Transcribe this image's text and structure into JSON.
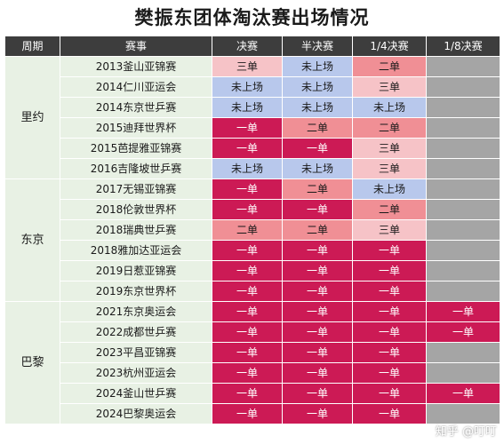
{
  "title": "樊振东团体淘汰赛出场情况",
  "headers": [
    "周期",
    "赛事",
    "决赛",
    "半决赛",
    "1/4决赛",
    "1/8决赛"
  ],
  "periods": [
    {
      "name": "里约",
      "rowspan": 6
    },
    {
      "name": "东京",
      "rowspan": 6
    },
    {
      "name": "巴黎",
      "rowspan": 6
    }
  ],
  "rows": [
    {
      "event": "2013釜山亚锦赛",
      "cells": [
        {
          "text": "三单",
          "c": "light"
        },
        {
          "text": "未上场",
          "c": "blue"
        },
        {
          "text": "二单",
          "c": "mid"
        },
        {
          "text": "",
          "c": "gray"
        }
      ]
    },
    {
      "event": "2014仁川亚运会",
      "cells": [
        {
          "text": "未上场",
          "c": "blue"
        },
        {
          "text": "未上场",
          "c": "blue"
        },
        {
          "text": "三单",
          "c": "light"
        },
        {
          "text": "",
          "c": "gray"
        }
      ]
    },
    {
      "event": "2014东京世乒赛",
      "cells": [
        {
          "text": "未上场",
          "c": "blue"
        },
        {
          "text": "未上场",
          "c": "blue"
        },
        {
          "text": "未上场",
          "c": "blue"
        },
        {
          "text": "",
          "c": "gray"
        }
      ]
    },
    {
      "event": "2015迪拜世界杯",
      "cells": [
        {
          "text": "一单",
          "c": "dark"
        },
        {
          "text": "二单",
          "c": "mid"
        },
        {
          "text": "二单",
          "c": "mid"
        },
        {
          "text": "",
          "c": "gray"
        }
      ]
    },
    {
      "event": "2015芭提雅亚锦赛",
      "cells": [
        {
          "text": "一单",
          "c": "dark"
        },
        {
          "text": "一单",
          "c": "dark"
        },
        {
          "text": "三单",
          "c": "light"
        },
        {
          "text": "",
          "c": "gray"
        }
      ]
    },
    {
      "event": "2016吉隆坡世乒赛",
      "cells": [
        {
          "text": "未上场",
          "c": "blue"
        },
        {
          "text": "未上场",
          "c": "blue"
        },
        {
          "text": "三单",
          "c": "light"
        },
        {
          "text": "",
          "c": "gray"
        }
      ]
    },
    {
      "event": "2017无锡亚锦赛",
      "cells": [
        {
          "text": "一单",
          "c": "dark"
        },
        {
          "text": "二单",
          "c": "mid"
        },
        {
          "text": "未上场",
          "c": "blue"
        },
        {
          "text": "",
          "c": "gray"
        }
      ]
    },
    {
      "event": "2018伦敦世界杯",
      "cells": [
        {
          "text": "一单",
          "c": "dark"
        },
        {
          "text": "一单",
          "c": "dark"
        },
        {
          "text": "二单",
          "c": "mid"
        },
        {
          "text": "",
          "c": "gray"
        }
      ]
    },
    {
      "event": "2018瑞典世乒赛",
      "cells": [
        {
          "text": "二单",
          "c": "mid"
        },
        {
          "text": "二单",
          "c": "mid"
        },
        {
          "text": "三单",
          "c": "light"
        },
        {
          "text": "",
          "c": "gray"
        }
      ]
    },
    {
      "event": "2018雅加达亚运会",
      "cells": [
        {
          "text": "一单",
          "c": "dark"
        },
        {
          "text": "一单",
          "c": "dark"
        },
        {
          "text": "一单",
          "c": "dark"
        },
        {
          "text": "",
          "c": "gray"
        }
      ]
    },
    {
      "event": "2019日惹亚锦赛",
      "cells": [
        {
          "text": "一单",
          "c": "dark"
        },
        {
          "text": "一单",
          "c": "dark"
        },
        {
          "text": "一单",
          "c": "dark"
        },
        {
          "text": "",
          "c": "gray"
        }
      ]
    },
    {
      "event": "2019东京世界杯",
      "cells": [
        {
          "text": "一单",
          "c": "dark"
        },
        {
          "text": "一单",
          "c": "dark"
        },
        {
          "text": "一单",
          "c": "dark"
        },
        {
          "text": "",
          "c": "gray"
        }
      ]
    },
    {
      "event": "2021东京奥运会",
      "cells": [
        {
          "text": "一单",
          "c": "dark"
        },
        {
          "text": "一单",
          "c": "dark"
        },
        {
          "text": "一单",
          "c": "dark"
        },
        {
          "text": "一单",
          "c": "dark"
        }
      ]
    },
    {
      "event": "2022成都世乒赛",
      "cells": [
        {
          "text": "一单",
          "c": "dark"
        },
        {
          "text": "一单",
          "c": "dark"
        },
        {
          "text": "一单",
          "c": "dark"
        },
        {
          "text": "一单",
          "c": "dark"
        }
      ]
    },
    {
      "event": "2023平昌亚锦赛",
      "cells": [
        {
          "text": "一单",
          "c": "dark"
        },
        {
          "text": "一单",
          "c": "dark"
        },
        {
          "text": "一单",
          "c": "dark"
        },
        {
          "text": "",
          "c": "gray"
        }
      ]
    },
    {
      "event": "2023杭州亚运会",
      "cells": [
        {
          "text": "一单",
          "c": "dark"
        },
        {
          "text": "一单",
          "c": "dark"
        },
        {
          "text": "一单",
          "c": "dark"
        },
        {
          "text": "",
          "c": "gray"
        }
      ]
    },
    {
      "event": "2024釜山世乒赛",
      "cells": [
        {
          "text": "一单",
          "c": "dark"
        },
        {
          "text": "一单",
          "c": "dark"
        },
        {
          "text": "一单",
          "c": "dark"
        },
        {
          "text": "一单",
          "c": "dark"
        }
      ]
    },
    {
      "event": "2024巴黎奥运会",
      "cells": [
        {
          "text": "一单",
          "c": "dark"
        },
        {
          "text": "一单",
          "c": "dark"
        },
        {
          "text": "一单",
          "c": "dark"
        },
        {
          "text": "",
          "c": "gray"
        }
      ]
    }
  ],
  "colors": {
    "header_bg": "#3d3d3d",
    "event_bg": "#e8f1e4",
    "dark": "#cc1a55",
    "mid": "#f08f95",
    "light": "#f6c3c7",
    "blue": "#b8c8ec",
    "gray": "#a5a5a5"
  },
  "watermark": "知乎 @叮叮"
}
